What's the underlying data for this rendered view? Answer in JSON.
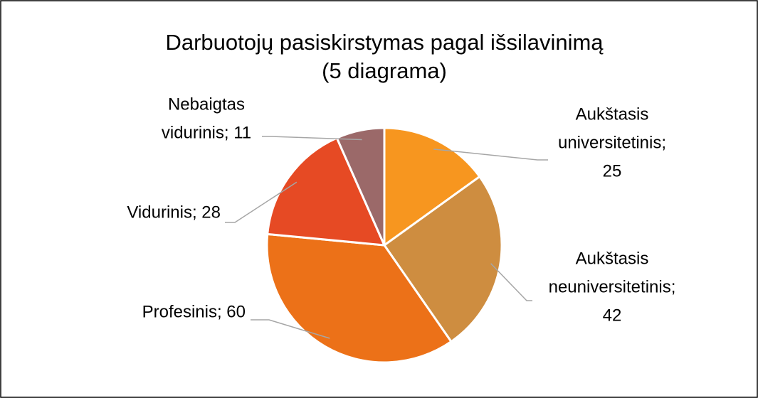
{
  "chart_data": {
    "type": "pie",
    "title": "Darbuotojų pasiskirstymas pagal išsilavinimą",
    "subtitle": "(5 diagrama)",
    "values": [
      25,
      42,
      60,
      28,
      11
    ],
    "value_labels": [
      [
        "Aukštasis",
        "universitetinis;",
        "25"
      ],
      [
        "Aukštasis",
        "neuniversitetinis;",
        "42"
      ],
      [
        "Profesinis; 60"
      ],
      [
        "Vidurinis; 28"
      ],
      [
        "Nebaigtas",
        "vidurinis; 11"
      ]
    ],
    "colors": [
      "#F7961F",
      "#CE8D40",
      "#EC7118",
      "#E64A24",
      "#9B6969"
    ]
  }
}
